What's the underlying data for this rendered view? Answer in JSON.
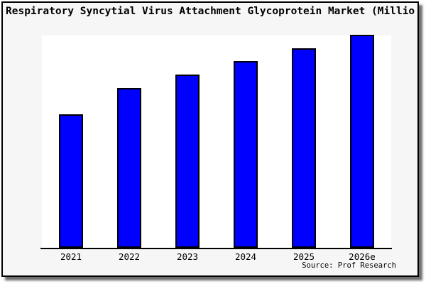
{
  "header": {
    "title": "Respiratory Syncytial Virus Attachment Glycoprotein Market (Millio"
  },
  "footer": {
    "source": "Source: Prof Research"
  },
  "colors": {
    "bar_fill": "#0000ff",
    "bar_border": "#000000",
    "axis": "#000000",
    "frame_border": "#000000",
    "frame_bg": "#f6f6f6",
    "plot_bg": "#ffffff",
    "shadow": "#6e6e6e",
    "text": "#000000"
  },
  "chart_data": {
    "type": "bar",
    "title": "Respiratory Syncytial Virus Attachment Glycoprotein Market (Millio",
    "categories": [
      "2021",
      "2022",
      "2023",
      "2024",
      "2025",
      "2026e"
    ],
    "values": [
      62.7,
      75.0,
      81.3,
      87.7,
      93.7,
      100.0
    ],
    "values_note": "No y-axis, gridlines or value labels are shown in the image; values are relative bar heights expressed as percent of the tallest (2026e) bar",
    "xlabel": "",
    "ylabel": "",
    "ylim": [
      0,
      100
    ],
    "grid": false,
    "legend": false,
    "y_axis_visible": false,
    "source": "Source: Prof Research"
  }
}
